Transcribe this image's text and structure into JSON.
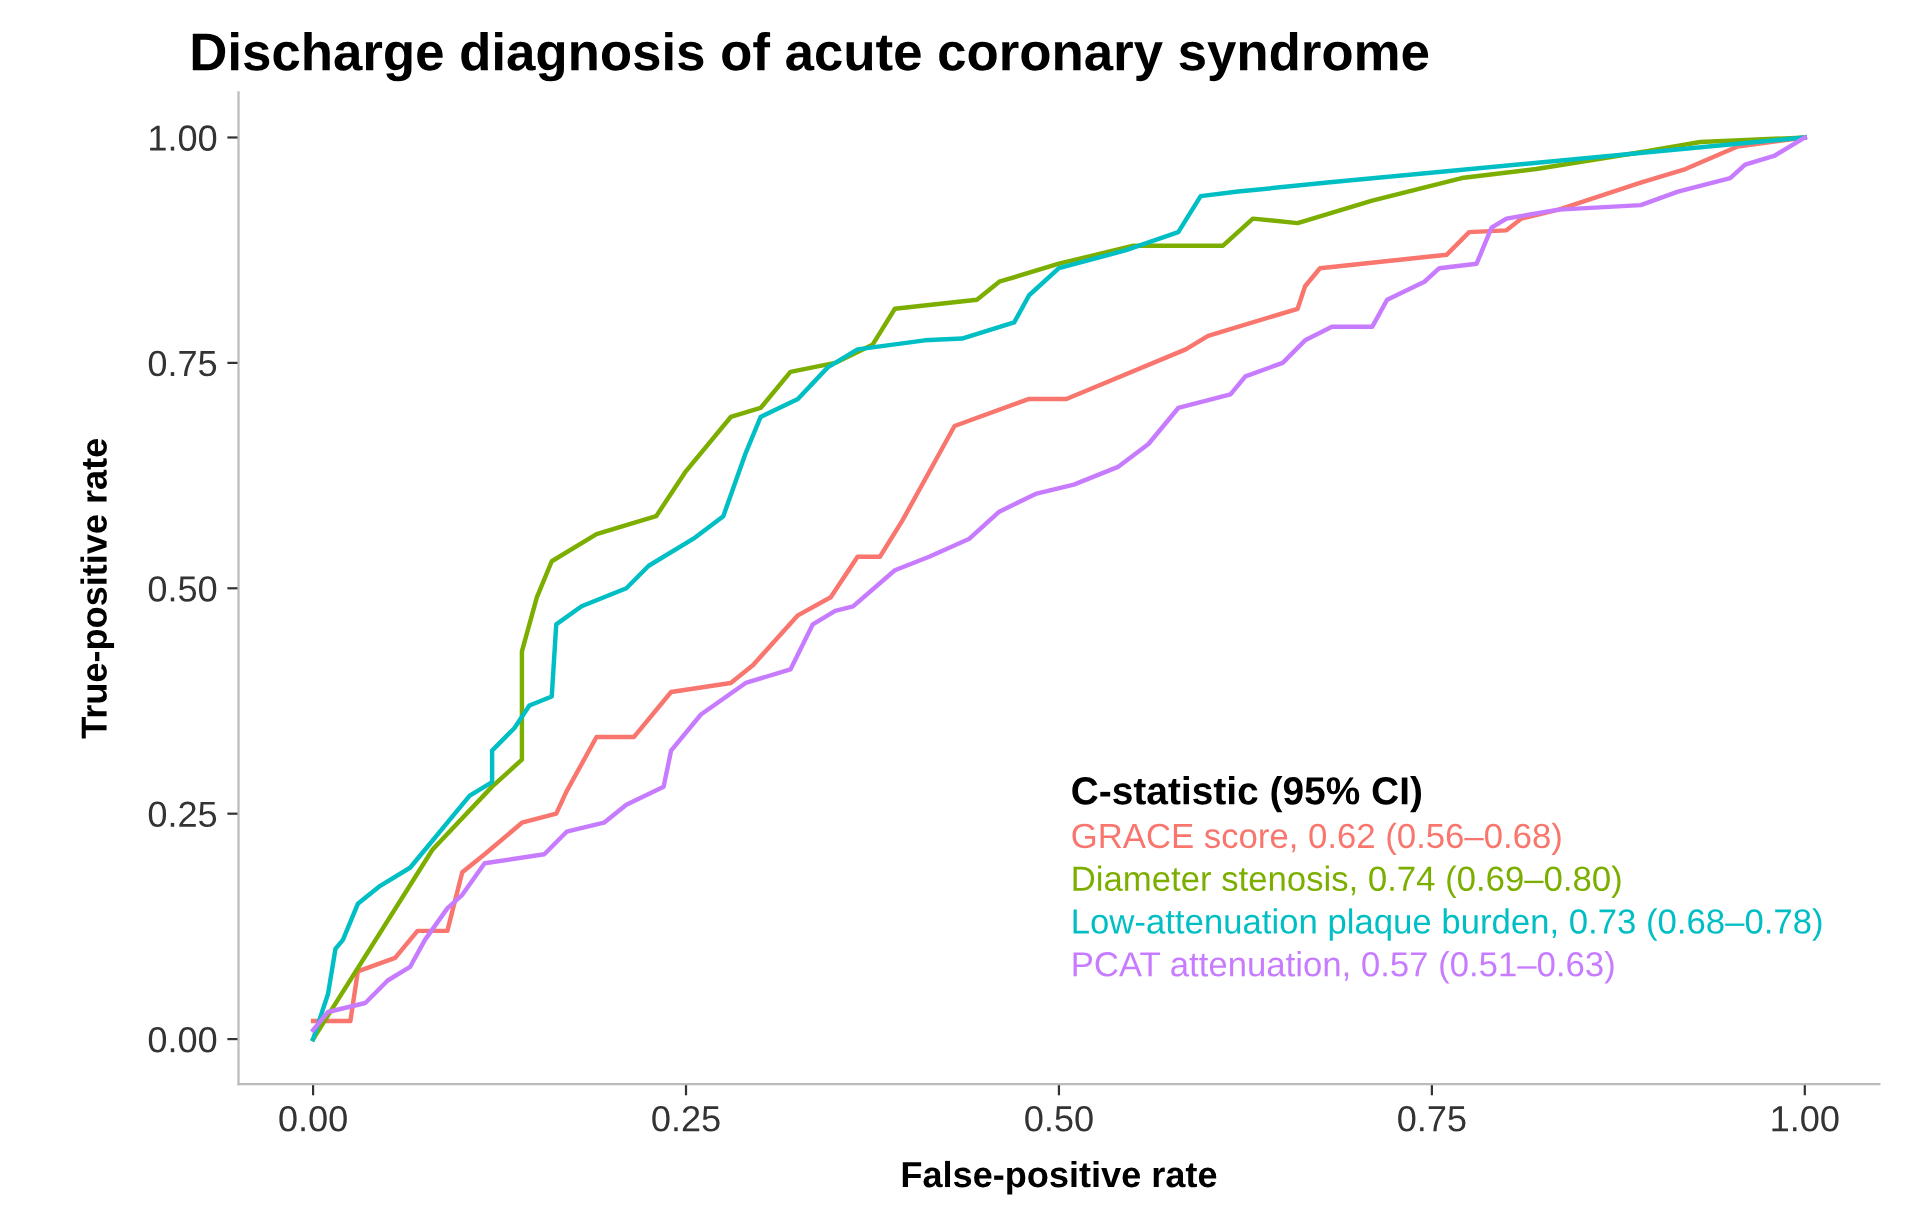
{
  "chart_data": {
    "type": "line",
    "title": "Discharge diagnosis of acute coronary syndrome",
    "xlabel": "False-positive rate",
    "ylabel": "True-positive rate",
    "legend_title": "C-statistic (95% CI)",
    "legend": "bottom right",
    "grid": false,
    "marker": "none",
    "line_style": "solid",
    "xlim": [
      -0.05,
      1.05
    ],
    "ylim": [
      -0.05,
      1.05
    ],
    "xticks": [
      {
        "value": 0,
        "label": "0.00"
      },
      {
        "value": 0.25,
        "label": "0.25"
      },
      {
        "value": 0.5,
        "label": "0.50"
      },
      {
        "value": 0.75,
        "label": "0.75"
      },
      {
        "value": 1,
        "label": "1.00"
      }
    ],
    "yticks": [
      {
        "value": 0,
        "label": "0.00"
      },
      {
        "value": 0.25,
        "label": "0.25"
      },
      {
        "value": 0.5,
        "label": "0.50"
      },
      {
        "value": 0.75,
        "label": "0.75"
      },
      {
        "value": 1,
        "label": "1.00"
      }
    ],
    "series": [
      {
        "name": "GRACE score, 0.62 (0.56–0.68)",
        "color": "#f8766d",
        "x": [
          0,
          0.025,
          0.03,
          0.055,
          0.07,
          0.09,
          0.1,
          0.115,
          0.14,
          0.163,
          0.17,
          0.19,
          0.215,
          0.24,
          0.28,
          0.295,
          0.325,
          0.347,
          0.365,
          0.38,
          0.395,
          0.43,
          0.48,
          0.505,
          0.585,
          0.6,
          0.66,
          0.665,
          0.675,
          0.76,
          0.775,
          0.8,
          0.81,
          0.835,
          0.89,
          0.92,
          0.955,
          1
        ],
        "values": [
          0.02,
          0.02,
          0.075,
          0.09,
          0.12,
          0.12,
          0.185,
          0.205,
          0.24,
          0.25,
          0.275,
          0.335,
          0.335,
          0.385,
          0.395,
          0.415,
          0.47,
          0.49,
          0.535,
          0.535,
          0.575,
          0.68,
          0.71,
          0.71,
          0.765,
          0.78,
          0.81,
          0.835,
          0.855,
          0.87,
          0.895,
          0.897,
          0.91,
          0.92,
          0.95,
          0.965,
          0.99,
          1
        ]
      },
      {
        "name": "Diameter stenosis, 0.74 (0.69–0.80)",
        "color": "#7cae00",
        "x": [
          0,
          0.08,
          0.12,
          0.14,
          0.14,
          0.15,
          0.16,
          0.19,
          0.23,
          0.25,
          0.28,
          0.3,
          0.32,
          0.35,
          0.375,
          0.39,
          0.445,
          0.46,
          0.5,
          0.55,
          0.61,
          0.63,
          0.66,
          0.71,
          0.77,
          0.82,
          0.895,
          0.93,
          1
        ],
        "values": [
          0,
          0.21,
          0.28,
          0.31,
          0.43,
          0.49,
          0.53,
          0.56,
          0.58,
          0.63,
          0.69,
          0.7,
          0.74,
          0.75,
          0.77,
          0.81,
          0.82,
          0.84,
          0.86,
          0.88,
          0.88,
          0.91,
          0.905,
          0.93,
          0.955,
          0.965,
          0.985,
          0.995,
          1
        ]
      },
      {
        "name": "Low-attenuation plaque burden, 0.73 (0.68–0.78)",
        "color": "#00bfc4",
        "x": [
          0,
          0.01,
          0.015,
          0.02,
          0.03,
          0.045,
          0.065,
          0.08,
          0.095,
          0.105,
          0.12,
          0.12,
          0.135,
          0.145,
          0.16,
          0.163,
          0.18,
          0.21,
          0.225,
          0.255,
          0.275,
          0.29,
          0.3,
          0.325,
          0.345,
          0.365,
          0.41,
          0.435,
          0.47,
          0.48,
          0.5,
          0.545,
          0.58,
          0.595,
          0.62,
          0.68,
          1
        ],
        "values": [
          0,
          0.05,
          0.1,
          0.11,
          0.15,
          0.17,
          0.19,
          0.22,
          0.25,
          0.27,
          0.285,
          0.32,
          0.345,
          0.37,
          0.38,
          0.46,
          0.48,
          0.5,
          0.525,
          0.555,
          0.58,
          0.65,
          0.69,
          0.71,
          0.745,
          0.765,
          0.775,
          0.777,
          0.795,
          0.825,
          0.855,
          0.875,
          0.895,
          0.935,
          0.94,
          0.95,
          1
        ]
      },
      {
        "name": "PCAT attenuation, 0.57 (0.51–0.63)",
        "color": "#c77cff",
        "x": [
          0,
          0.01,
          0.035,
          0.05,
          0.065,
          0.075,
          0.09,
          0.1,
          0.115,
          0.155,
          0.17,
          0.195,
          0.21,
          0.235,
          0.24,
          0.26,
          0.29,
          0.32,
          0.335,
          0.35,
          0.362,
          0.39,
          0.413,
          0.44,
          0.46,
          0.485,
          0.51,
          0.54,
          0.56,
          0.58,
          0.615,
          0.625,
          0.65,
          0.665,
          0.683,
          0.71,
          0.72,
          0.745,
          0.755,
          0.78,
          0.79,
          0.8,
          0.835,
          0.89,
          0.915,
          0.95,
          0.96,
          0.98,
          1
        ],
        "values": [
          0.01,
          0.03,
          0.04,
          0.065,
          0.08,
          0.11,
          0.145,
          0.16,
          0.195,
          0.205,
          0.23,
          0.24,
          0.26,
          0.28,
          0.32,
          0.36,
          0.395,
          0.41,
          0.46,
          0.475,
          0.48,
          0.52,
          0.535,
          0.555,
          0.585,
          0.605,
          0.615,
          0.635,
          0.66,
          0.7,
          0.715,
          0.735,
          0.75,
          0.775,
          0.79,
          0.79,
          0.82,
          0.84,
          0.855,
          0.86,
          0.9,
          0.91,
          0.92,
          0.925,
          0.94,
          0.955,
          0.97,
          0.98,
          1
        ]
      }
    ]
  }
}
